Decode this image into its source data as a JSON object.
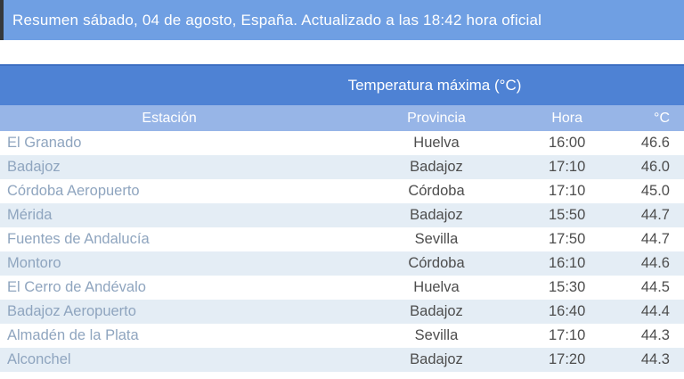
{
  "banner": {
    "text": "Resumen sábado, 04 de agosto, España. Actualizado a las 18:42 hora oficial"
  },
  "table": {
    "title": "Temperatura máxima (°C)",
    "columns": [
      "Estación",
      "Provincia",
      "Hora",
      "°C"
    ],
    "rows": [
      {
        "estacion": "El Granado",
        "provincia": "Huelva",
        "hora": "16:00",
        "temp": "46.6"
      },
      {
        "estacion": "Badajoz",
        "provincia": "Badajoz",
        "hora": "17:10",
        "temp": "46.0"
      },
      {
        "estacion": "Córdoba Aeropuerto",
        "provincia": "Córdoba",
        "hora": "17:10",
        "temp": "45.0"
      },
      {
        "estacion": "Mérida",
        "provincia": "Badajoz",
        "hora": "15:50",
        "temp": "44.7"
      },
      {
        "estacion": "Fuentes de Andalucía",
        "provincia": "Sevilla",
        "hora": "17:50",
        "temp": "44.7"
      },
      {
        "estacion": "Montoro",
        "provincia": "Córdoba",
        "hora": "16:10",
        "temp": "44.6"
      },
      {
        "estacion": "El Cerro de Andévalo",
        "provincia": "Huelva",
        "hora": "15:30",
        "temp": "44.5"
      },
      {
        "estacion": "Badajoz Aeropuerto",
        "provincia": "Badajoz",
        "hora": "16:40",
        "temp": "44.4"
      },
      {
        "estacion": "Almadén de la Plata",
        "provincia": "Sevilla",
        "hora": "17:10",
        "temp": "44.3"
      },
      {
        "estacion": "Alconchel",
        "provincia": "Badajoz",
        "hora": "17:20",
        "temp": "44.3"
      }
    ]
  },
  "colors": {
    "banner-bg": "#6f9fe3",
    "accent-bar": "#35383c",
    "title-bg": "#4e82d4",
    "title-border": "#3d6fc2",
    "colhead-bg": "#97b5e7",
    "row-alt-bg": "#e4edf5",
    "station-text": "#8fa5bf",
    "cell-text": "#4d4d4d"
  }
}
